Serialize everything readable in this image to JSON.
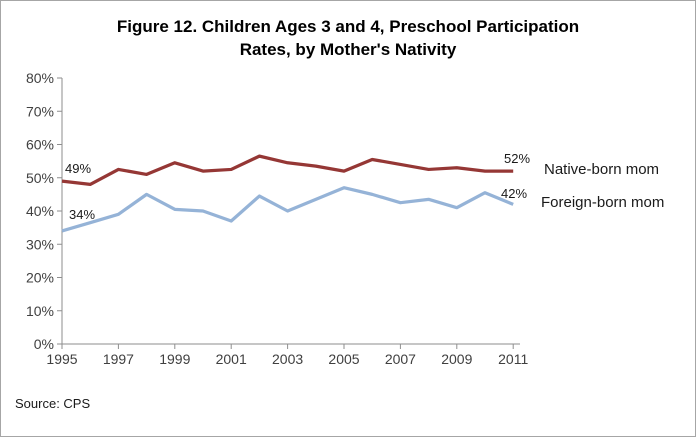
{
  "figure": {
    "title_line1": "Figure 12. Children Ages 3 and 4, Preschool Participation",
    "title_line2": "Rates, by Mother's Nativity",
    "source": "Source: CPS"
  },
  "chart_data": {
    "type": "line",
    "title": "Figure 12. Children Ages 3 and 4, Preschool Participation Rates, by Mother's Nativity",
    "xlabel": "",
    "ylabel": "",
    "xlim": [
      1995,
      2011
    ],
    "ylim": [
      0,
      80
    ],
    "grid": false,
    "legend_position": "right-of-line-ends",
    "x": [
      1995,
      1996,
      1997,
      1998,
      1999,
      2000,
      2001,
      2002,
      2003,
      2004,
      2005,
      2006,
      2007,
      2008,
      2009,
      2010,
      2011
    ],
    "x_tick_labels": [
      "1995",
      "1997",
      "1999",
      "2001",
      "2003",
      "2005",
      "2007",
      "2009",
      "2011"
    ],
    "y_tick_labels": [
      "0%",
      "10%",
      "20%",
      "30%",
      "40%",
      "50%",
      "60%",
      "70%",
      "80%"
    ],
    "series": [
      {
        "name": "Native-born mom",
        "color": "#953735",
        "values": [
          49,
          48,
          52.5,
          51,
          54.5,
          52,
          52.5,
          56.5,
          54.5,
          53.5,
          52,
          55.5,
          54,
          52.5,
          53,
          52,
          52
        ],
        "start_label": "49%",
        "end_label": "52%"
      },
      {
        "name": "Foreign-born mom",
        "color": "#95B3D7",
        "values": [
          34,
          36.5,
          39,
          45,
          40.5,
          40,
          37,
          44.5,
          40,
          43.5,
          47,
          45,
          42.5,
          43.5,
          41,
          45.5,
          42
        ],
        "start_label": "34%",
        "end_label": "42%"
      }
    ],
    "axis_color": "#8e8e8e",
    "tick_text_color": "#404040"
  }
}
